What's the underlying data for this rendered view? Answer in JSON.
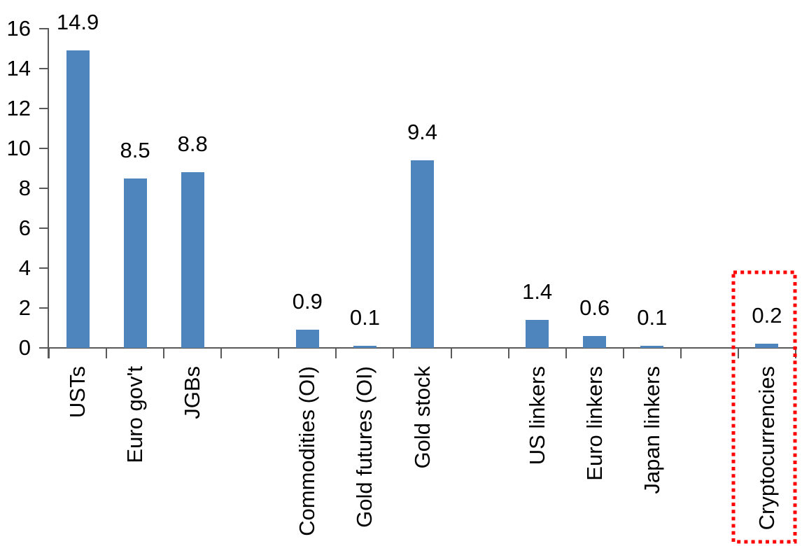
{
  "chart_data": {
    "type": "bar",
    "title": "",
    "categories": [
      "USTs",
      "Euro gov't",
      "JGBs",
      "Commodities (OI)",
      "Gold futures (OI)",
      "Gold stock",
      "US linkers",
      "Euro linkers",
      "Japan linkers",
      "Cryptocurrencies"
    ],
    "values": [
      14.9,
      8.5,
      8.8,
      0.9,
      0.1,
      9.4,
      1.4,
      0.6,
      0.1,
      0.2
    ],
    "data_labels": [
      "14.9",
      "8.5",
      "8.8",
      "0.9",
      "0.1",
      "9.4",
      "1.4",
      "0.6",
      "0.1",
      "0.2"
    ],
    "xlabel": "",
    "ylabel": "",
    "ylim": [
      0,
      16
    ],
    "y_ticks": [
      0,
      2,
      4,
      6,
      8,
      10,
      12,
      14,
      16
    ],
    "grid": false,
    "legend": "none",
    "layout": {
      "total_slots": 13,
      "slot_indices": [
        0,
        1,
        2,
        4,
        5,
        6,
        8,
        9,
        10,
        12
      ]
    },
    "colors": {
      "bar": "#4E85BC",
      "axis": "#595959",
      "text": "#000000",
      "annotation": "#FF0000"
    },
    "annotation": {
      "type": "dotted-rect",
      "category": "Cryptocurrencies",
      "color": "#FF0000"
    }
  }
}
